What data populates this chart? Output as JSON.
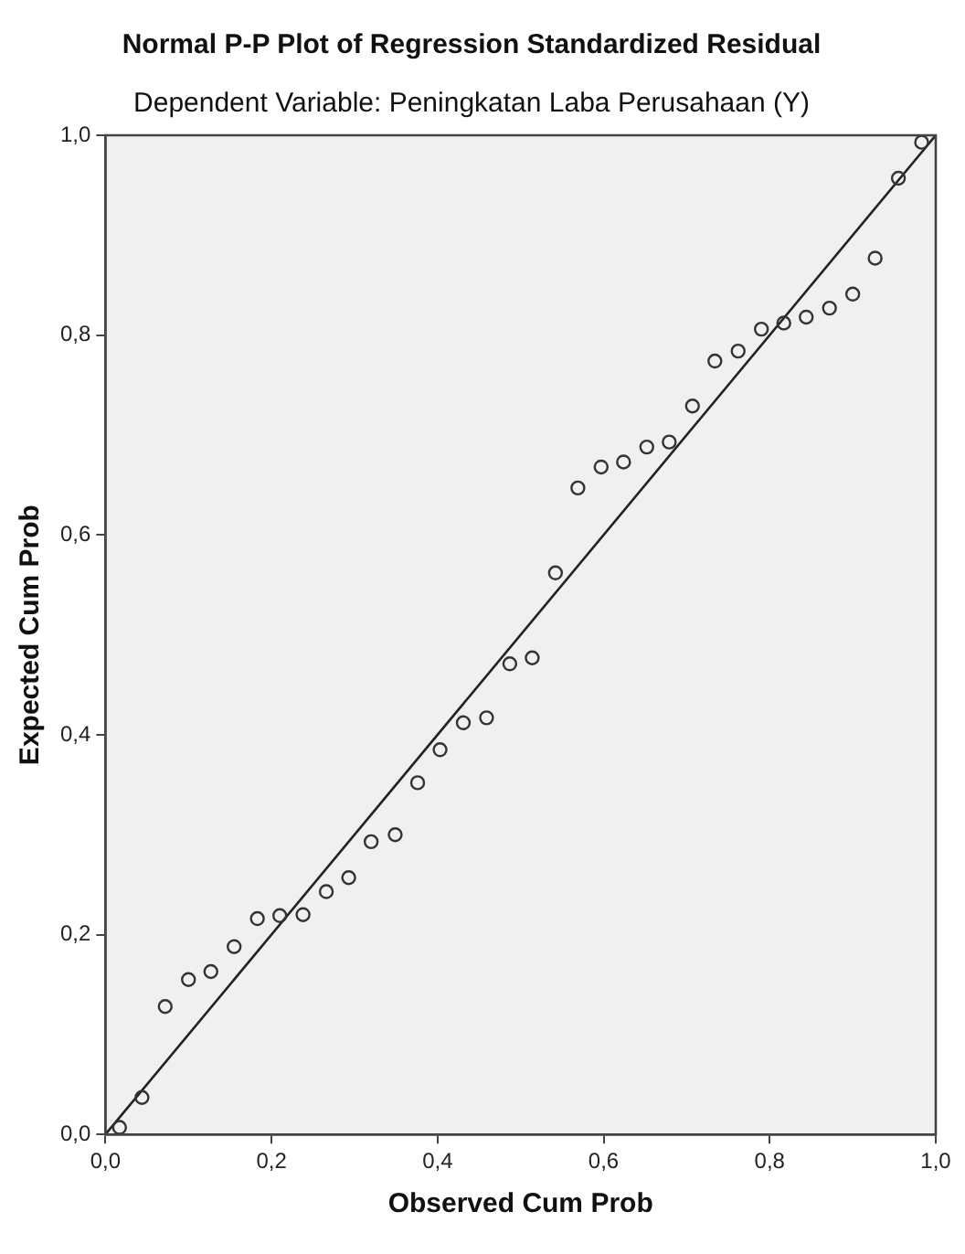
{
  "chart_data": {
    "type": "scatter",
    "title": "Normal P-P Plot of Regression Standardized Residual",
    "subtitle": "Dependent Variable: Peningkatan Laba Perusahaan (Y)",
    "xlabel": "Observed Cum Prob",
    "ylabel": "Expected Cum Prob",
    "xlim": [
      0,
      1
    ],
    "ylim": [
      0,
      1
    ],
    "xticks": [
      {
        "value": 0,
        "label": "0,0"
      },
      {
        "value": 0.2,
        "label": "0,2"
      },
      {
        "value": 0.4,
        "label": "0,4"
      },
      {
        "value": 0.6,
        "label": "0,6"
      },
      {
        "value": 0.8,
        "label": "0,8"
      },
      {
        "value": 1,
        "label": "1,0"
      }
    ],
    "yticks": [
      {
        "value": 0,
        "label": "0,0"
      },
      {
        "value": 0.2,
        "label": "0,2"
      },
      {
        "value": 0.4,
        "label": "0,4"
      },
      {
        "value": 0.6,
        "label": "0,6"
      },
      {
        "value": 0.8,
        "label": "0,8"
      },
      {
        "value": 1,
        "label": "1,0"
      }
    ],
    "grid": false,
    "legend": false,
    "marker": "circle",
    "series": [
      {
        "color": "#333333",
        "x": [
          0.017,
          0.044,
          0.072,
          0.1,
          0.127,
          0.155,
          0.183,
          0.21,
          0.238,
          0.266,
          0.293,
          0.32,
          0.349,
          0.376,
          0.403,
          0.431,
          0.459,
          0.487,
          0.514,
          0.542,
          0.569,
          0.597,
          0.624,
          0.652,
          0.679,
          0.707,
          0.734,
          0.762,
          0.79,
          0.817,
          0.844,
          0.872,
          0.9,
          0.927,
          0.955,
          0.983
        ],
        "values": [
          0.007,
          0.037,
          0.128,
          0.155,
          0.163,
          0.188,
          0.216,
          0.219,
          0.22,
          0.243,
          0.257,
          0.293,
          0.3,
          0.352,
          0.385,
          0.412,
          0.417,
          0.471,
          0.477,
          0.562,
          0.647,
          0.668,
          0.673,
          0.688,
          0.693,
          0.729,
          0.774,
          0.784,
          0.806,
          0.812,
          0.818,
          0.827,
          0.841,
          0.877,
          0.957,
          0.993
        ]
      },
      {
        "type": "line",
        "color": "#222222",
        "x": [
          0,
          1
        ],
        "values": [
          0,
          1
        ],
        "marker": "none",
        "line_style": "solid"
      }
    ]
  }
}
